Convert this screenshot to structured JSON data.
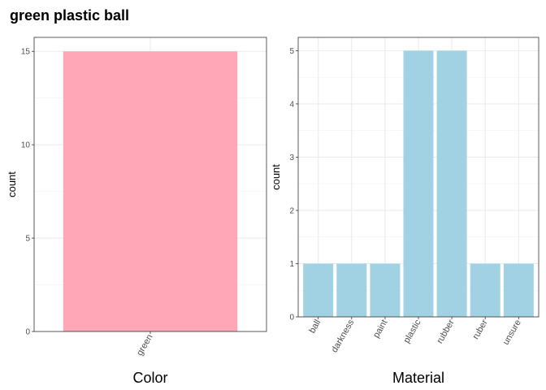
{
  "title": "green plastic ball",
  "colors": {
    "color_bar": "#FFA7B6",
    "material_bar": "#A0D2E3"
  },
  "chart_data": [
    {
      "type": "bar",
      "categories": [
        "green"
      ],
      "values": [
        15
      ],
      "xlabel": "Color",
      "ylabel": "count",
      "ylim": [
        0,
        15.75
      ],
      "yticks": [
        0,
        5,
        10,
        15
      ],
      "grid": true
    },
    {
      "type": "bar",
      "categories": [
        "ball",
        "darkness",
        "paint",
        "plastic",
        "rubber",
        "ruber",
        "unsure"
      ],
      "values": [
        1,
        1,
        1,
        5,
        5,
        1,
        1
      ],
      "xlabel": "Material",
      "ylabel": "count",
      "ylim": [
        0,
        5.25
      ],
      "yticks": [
        0,
        1,
        2,
        3,
        4,
        5
      ],
      "grid": true
    }
  ]
}
